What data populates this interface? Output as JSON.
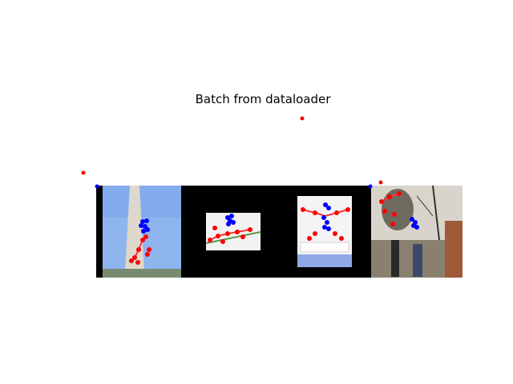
{
  "figure": {
    "title": "Batch from dataloader",
    "colors": {
      "background": "#000000",
      "sky": "#8fb5ee",
      "monument": "#ded8cc",
      "photo_light": "#f2f2f2",
      "street": "#8a8070",
      "keypoint_red": "#ff0000",
      "keypoint_blue": "#0000ff"
    },
    "images": [
      {
        "name": "image-1",
        "scene": "monument"
      },
      {
        "name": "image-2",
        "scene": "floor-dance"
      },
      {
        "name": "image-3",
        "scene": "jump"
      },
      {
        "name": "image-4",
        "scene": "street"
      }
    ]
  }
}
